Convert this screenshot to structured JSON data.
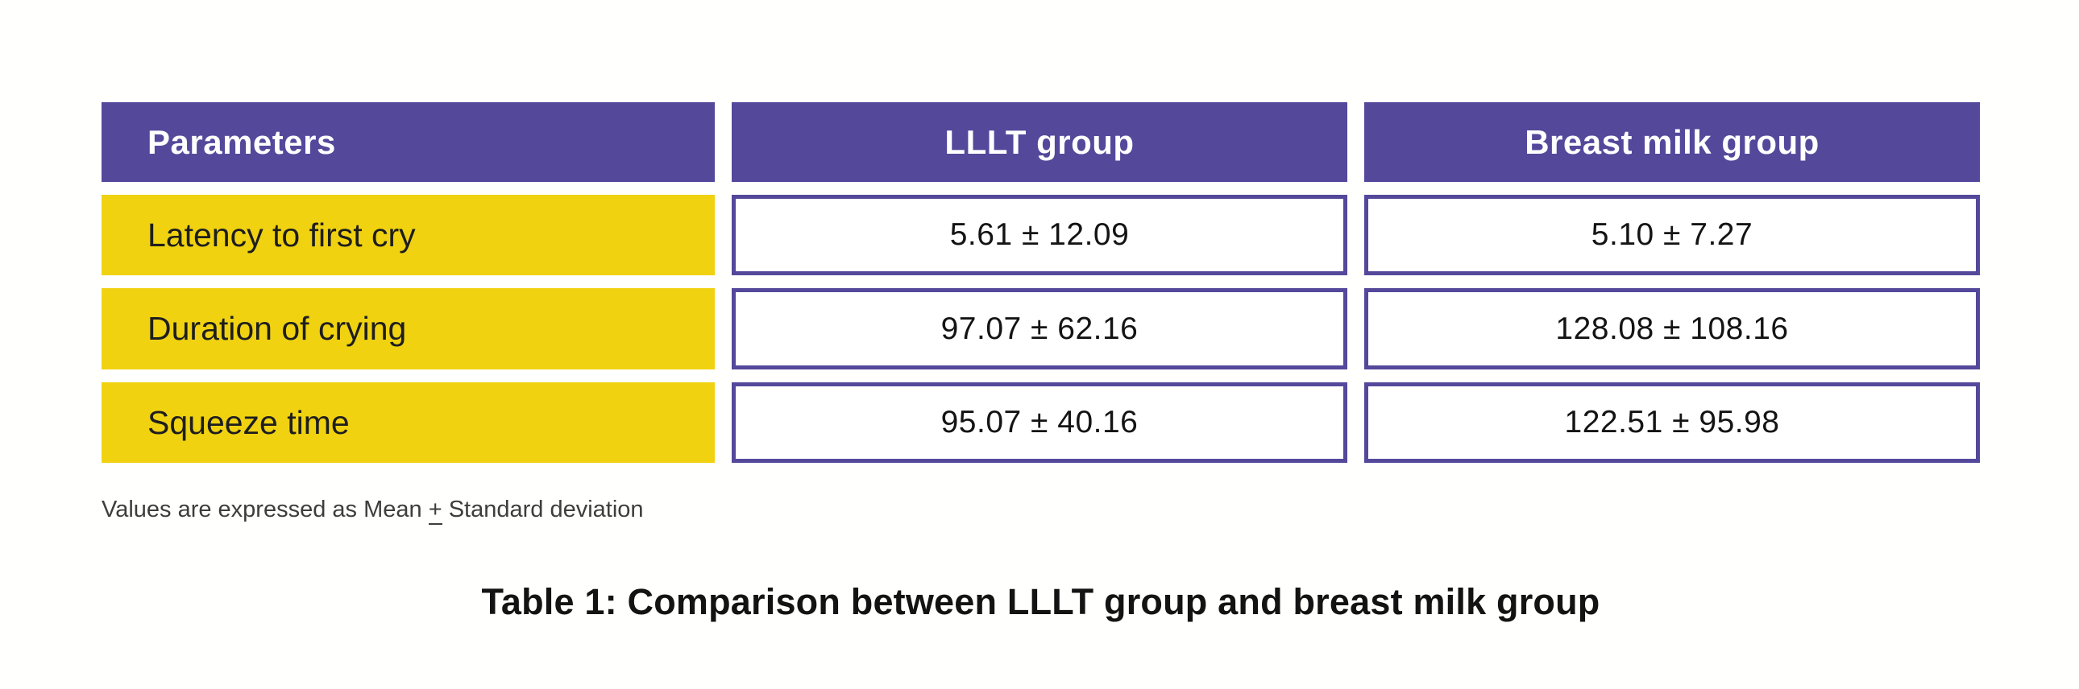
{
  "table": {
    "columns": [
      {
        "label": "Parameters"
      },
      {
        "label": "LLLT group"
      },
      {
        "label": "Breast milk group"
      }
    ],
    "rows": [
      {
        "parameter": "Latency to first cry",
        "lllt": "5.61 ± 12.09",
        "breast_milk": "5.10 ± 7.27"
      },
      {
        "parameter": "Duration of crying",
        "lllt": "97.07 ± 62.16",
        "breast_milk": "128.08 ± 108.16"
      },
      {
        "parameter": "Squeeze time",
        "lllt": "95.07 ± 40.16",
        "breast_milk": "122.51 ± 95.98"
      }
    ],
    "footnote": {
      "prefix": "Values are expressed as Mean ",
      "plus_minus": "+",
      "suffix": " Standard deviation"
    },
    "caption": "Table 1: Comparison between LLLT group and breast milk group"
  },
  "colors": {
    "header_background": "#54489B",
    "header_text": "#FFFFFF",
    "parameter_cell_background": "#F0D211",
    "value_cell_border": "#54489B",
    "body_text": "#141414",
    "page_background": "#FFFFFD"
  }
}
